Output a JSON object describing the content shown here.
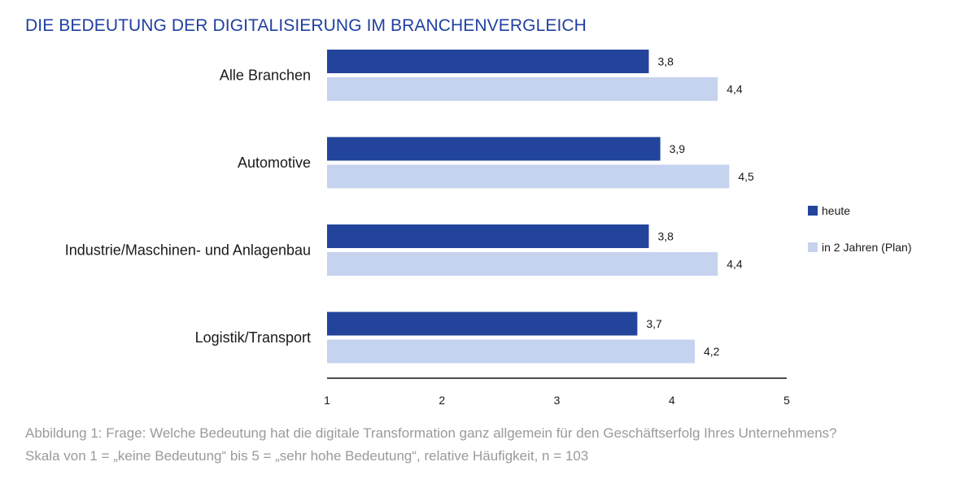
{
  "title": "DIE BEDEUTUNG DER DIGITALISIERUNG IM BRANCHENVERGLEICH",
  "caption": {
    "line1": "Abbildung 1: Frage: Welche Bedeutung hat die digitale Transformation ganz allgemein für den Geschäftserfolg Ihres Unternehmens?",
    "line2": "Skala von 1 = „keine Bedeutung“ bis 5 = „sehr hohe Bedeutung“, relative Häufigkeit, n = 103"
  },
  "colors": {
    "heute": "#22449a",
    "plan": "#c6d3ef",
    "title": "#2040a0",
    "axis": "#111111",
    "caption": "#9a9a9a"
  },
  "chart_data": {
    "type": "bar",
    "orientation": "horizontal",
    "title": "DIE BEDEUTUNG DER DIGITALISIERUNG IM BRANCHENVERGLEICH",
    "categories": [
      "Alle Branchen",
      "Automotive",
      "Industrie/Maschinen- und Anlagenbau",
      "Logistik/Transport"
    ],
    "series": [
      {
        "name": "heute",
        "values": [
          3.8,
          3.9,
          3.8,
          3.7
        ],
        "labels": [
          "3,8",
          "3,9",
          "3,8",
          "3,7"
        ]
      },
      {
        "name": "in 2 Jahren (Plan)",
        "values": [
          4.4,
          4.5,
          4.4,
          4.2
        ],
        "labels": [
          "4,4",
          "4,5",
          "4,4",
          "4,2"
        ]
      }
    ],
    "xlim": [
      1,
      5
    ],
    "xticks": [
      "1",
      "2",
      "3",
      "4",
      "5"
    ],
    "legend": "right",
    "grid": false
  }
}
